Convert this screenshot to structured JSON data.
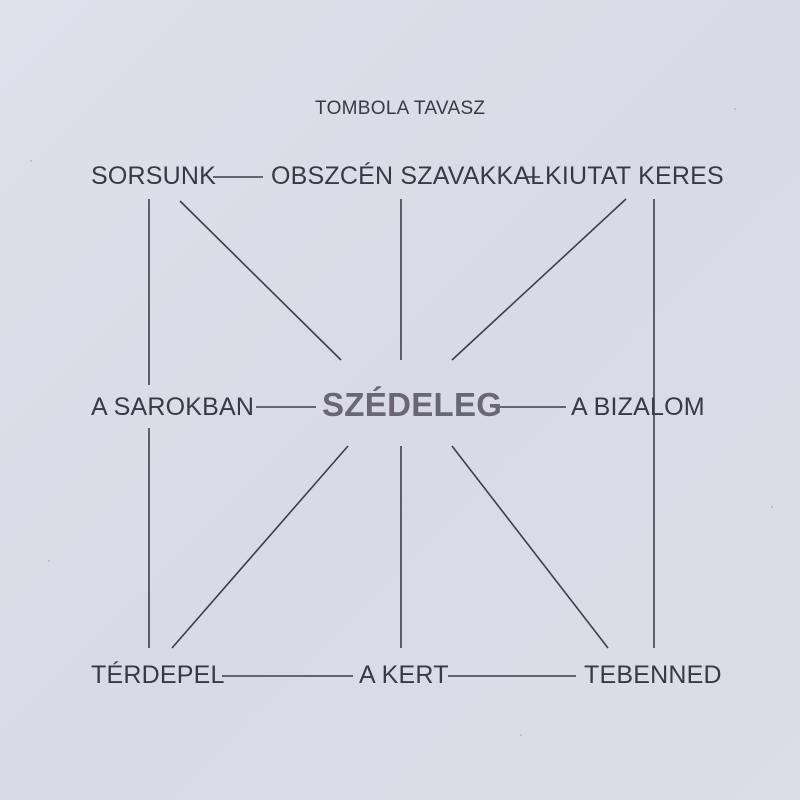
{
  "title": "TOMBOLA TAVASZ",
  "center_word": "SZÉDELEG",
  "words": {
    "top_left": "SORSUNK",
    "top_middle": "OBSZCÉN SZAVAKKAL",
    "top_right": "KIUTAT KERES",
    "middle_left": "A SAROKBAN",
    "middle_right": "A BIZALOM",
    "bottom_left": "TÉRDEPEL",
    "bottom_middle": "A KERT",
    "bottom_right": "TEBENNED"
  }
}
